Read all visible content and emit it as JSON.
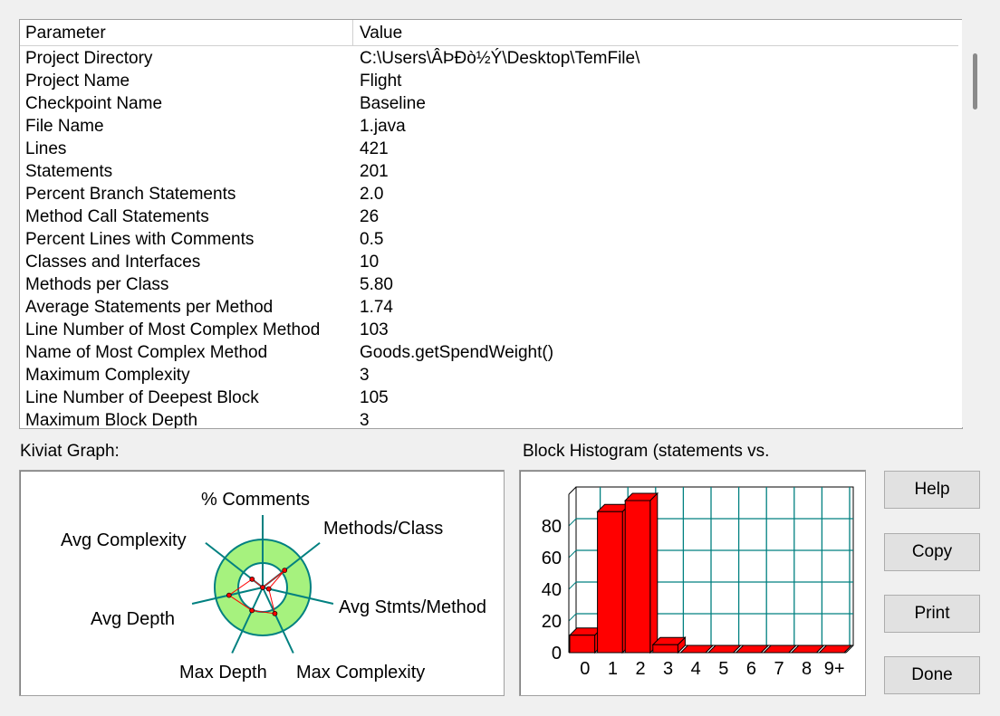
{
  "table": {
    "headers": [
      "Parameter",
      "Value"
    ],
    "rows": [
      [
        "Project Directory",
        "C:\\Users\\ÂÞÐò½Ý\\Desktop\\TemFile\\"
      ],
      [
        "Project Name",
        "Flight"
      ],
      [
        "Checkpoint Name",
        "Baseline"
      ],
      [
        "File Name",
        "1.java"
      ],
      [
        "Lines",
        "421"
      ],
      [
        "Statements",
        "201"
      ],
      [
        "Percent Branch Statements",
        "2.0"
      ],
      [
        "Method Call Statements",
        "26"
      ],
      [
        "Percent Lines with Comments",
        "0.5"
      ],
      [
        "Classes and Interfaces",
        "10"
      ],
      [
        "Methods per Class",
        "5.80"
      ],
      [
        "Average Statements per Method",
        "1.74"
      ],
      [
        "Line Number of Most Complex Method",
        "103"
      ],
      [
        "Name of Most Complex Method",
        "Goods.getSpendWeight()"
      ],
      [
        "Maximum Complexity",
        "3"
      ],
      [
        "Line Number of Deepest Block",
        "105"
      ],
      [
        "Maximum Block Depth",
        "3"
      ]
    ]
  },
  "kiviat": {
    "title": "Kiviat Graph:",
    "axes": [
      {
        "label": "% Comments",
        "value": 0.0
      },
      {
        "label": "Methods/Class",
        "value": 0.58
      },
      {
        "label": "Avg Stmts/Method",
        "value": 0.13
      },
      {
        "label": "Max Complexity",
        "value": 0.6
      },
      {
        "label": "Max Depth",
        "value": 0.53
      },
      {
        "label": "Avg Depth",
        "value": 0.72
      },
      {
        "label": "Avg Complexity",
        "value": 0.28
      }
    ],
    "band_color": "#a6f27e",
    "axis_color": "#008080",
    "line_color": "#ff0000"
  },
  "chart_data": {
    "type": "bar",
    "title": "Block Histogram (statements vs.",
    "categories": [
      "0",
      "1",
      "2",
      "3",
      "4",
      "5",
      "6",
      "7",
      "8",
      "9+"
    ],
    "values": [
      11,
      89,
      96,
      5,
      0,
      0,
      0,
      0,
      0,
      0
    ],
    "yticks": [
      0,
      20,
      40,
      60,
      80
    ],
    "ylim": [
      0,
      100
    ],
    "grid": true,
    "bar_color": "#ff0000",
    "grid_color": "#008080"
  },
  "buttons": {
    "help": "Help",
    "copy": "Copy",
    "print": "Print",
    "done": "Done"
  }
}
